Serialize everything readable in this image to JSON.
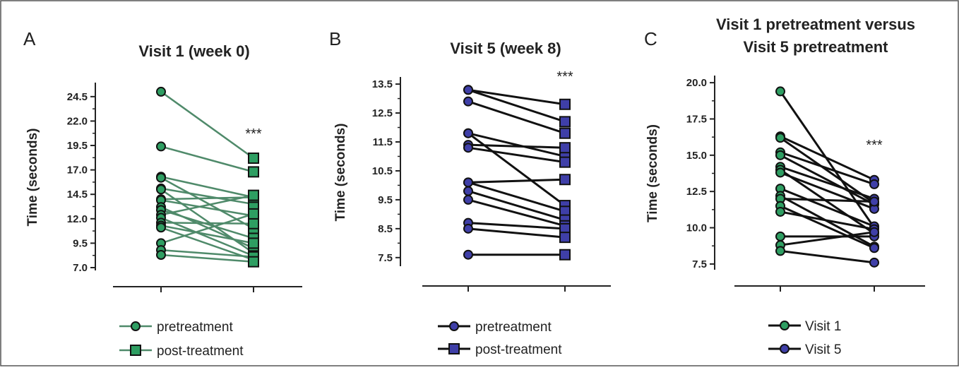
{
  "chart_data": [
    {
      "panel": "A",
      "type": "line",
      "title": "Visit 1 (week 0)",
      "ylabel": "Time (seconds)",
      "ylim": [
        7.0,
        25.5
      ],
      "yticks": [
        "7.0",
        "9.5",
        "12.0",
        "14.5",
        "17.0",
        "19.5",
        "22.0",
        "24.5"
      ],
      "significance": "***",
      "colors": {
        "line": "#4f8a6a",
        "marker": "#2e9e62"
      },
      "legend": [
        {
          "label": "pretreatment",
          "marker": "circle"
        },
        {
          "label": "post-treatment",
          "marker": "square"
        }
      ],
      "pairs": [
        [
          25.0,
          18.2
        ],
        [
          19.4,
          16.8
        ],
        [
          16.3,
          14.2
        ],
        [
          16.2,
          11.0
        ],
        [
          15.1,
          13.5
        ],
        [
          15.0,
          8.5
        ],
        [
          14.0,
          14.2
        ],
        [
          13.9,
          12.3
        ],
        [
          13.2,
          9.0
        ],
        [
          12.9,
          10.0
        ],
        [
          12.4,
          14.4
        ],
        [
          12.1,
          8.2
        ],
        [
          11.6,
          11.5
        ],
        [
          11.3,
          9.5
        ],
        [
          11.1,
          7.8
        ],
        [
          9.5,
          12.5
        ],
        [
          8.8,
          8.1
        ],
        [
          8.3,
          7.6
        ]
      ]
    },
    {
      "panel": "B",
      "type": "line",
      "title": "Visit 5 (week 8)",
      "ylabel": "Time (seconds)",
      "ylim": [
        7.3,
        13.6
      ],
      "yticks": [
        "7.5",
        "8.5",
        "9.5",
        "10.5",
        "11.5",
        "12.5",
        "13.5"
      ],
      "significance": "***",
      "colors": {
        "line": "#111111",
        "marker": "#3f3fa8"
      },
      "legend": [
        {
          "label": "pretreatment",
          "marker": "circle"
        },
        {
          "label": "post-treatment",
          "marker": "square"
        }
      ],
      "pairs": [
        [
          13.3,
          12.8
        ],
        [
          13.3,
          12.2
        ],
        [
          12.9,
          11.8
        ],
        [
          11.8,
          11.0
        ],
        [
          11.8,
          9.3
        ],
        [
          11.4,
          11.3
        ],
        [
          11.3,
          10.8
        ],
        [
          10.1,
          10.2
        ],
        [
          10.1,
          9.1
        ],
        [
          9.8,
          8.8
        ],
        [
          9.5,
          8.6
        ],
        [
          8.7,
          8.5
        ],
        [
          8.5,
          8.2
        ],
        [
          7.6,
          7.6
        ]
      ]
    },
    {
      "panel": "C",
      "type": "line",
      "title": [
        "Visit 1 pretreatment versus",
        "Visit 5 pretreatment"
      ],
      "ylabel": "Time (seconds)",
      "ylim": [
        7.3,
        20.2
      ],
      "yticks": [
        "7.5",
        "10.0",
        "12.5",
        "15.0",
        "17.5",
        "20.0"
      ],
      "significance": "***",
      "colors": {
        "line": "#111111",
        "visit1": "#2e9e62",
        "visit5": "#3f3fa8"
      },
      "legend": [
        {
          "label": "Visit 1",
          "marker": "circle"
        },
        {
          "label": "Visit 5",
          "marker": "circle"
        }
      ],
      "pairs": [
        [
          19.4,
          10.0
        ],
        [
          16.3,
          13.3
        ],
        [
          16.2,
          11.7
        ],
        [
          15.2,
          13.0
        ],
        [
          15.0,
          11.6
        ],
        [
          14.2,
          12.0
        ],
        [
          14.0,
          9.6
        ],
        [
          13.8,
          11.3
        ],
        [
          12.7,
          10.1
        ],
        [
          12.2,
          8.7
        ],
        [
          12.0,
          11.8
        ],
        [
          11.5,
          8.6
        ],
        [
          11.1,
          9.9
        ],
        [
          9.4,
          9.4
        ],
        [
          8.8,
          9.7
        ],
        [
          8.4,
          7.6
        ]
      ]
    }
  ]
}
